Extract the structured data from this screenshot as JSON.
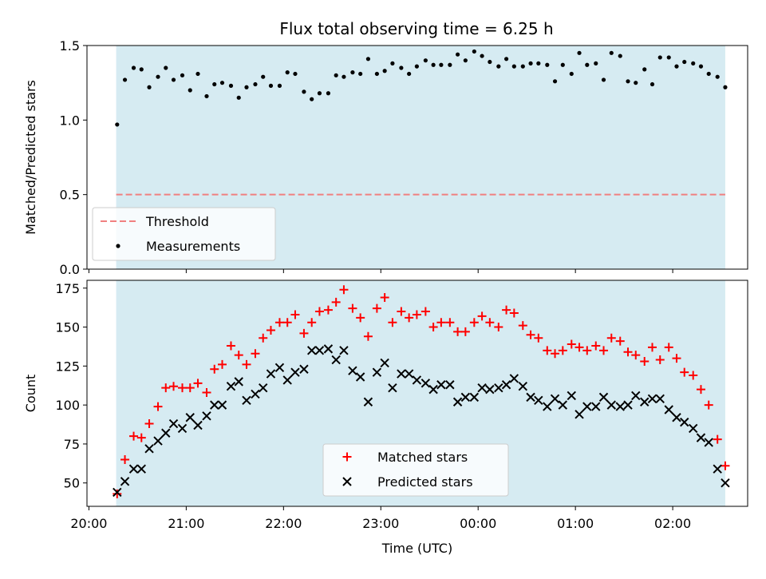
{
  "title": "Flux total observing time = 6.25 h",
  "colors": {
    "band": "#add8e6",
    "threshold": "#f08080",
    "measurement": "#000000",
    "matched": "#ff0000",
    "predicted": "#000000"
  },
  "chart_data": [
    {
      "type": "scatter",
      "panel": "top",
      "ylabel": "Matched/Predicted stars",
      "xlabel": "",
      "ylim": [
        0,
        1.5
      ],
      "yticks": [
        0.0,
        0.5,
        1.0,
        1.5
      ],
      "ytick_labels": [
        "0.0",
        "0.5",
        "1.0",
        "1.5"
      ],
      "xlim_hours": [
        19.98,
        26.77
      ],
      "xticks_hours": [
        20,
        21,
        22,
        23,
        24,
        25,
        26
      ],
      "shaded_span_hours": [
        20.28,
        26.54
      ],
      "threshold": 0.5,
      "legend_placement": "lower-left",
      "legend": [
        "Threshold",
        "Measurements"
      ],
      "series": [
        {
          "name": "Measurements",
          "marker": "dot",
          "x_hours": [
            20.29,
            20.37,
            20.46,
            20.54,
            20.62,
            20.71,
            20.79,
            20.87,
            20.96,
            21.04,
            21.12,
            21.21,
            21.29,
            21.37,
            21.46,
            21.54,
            21.62,
            21.71,
            21.79,
            21.87,
            21.96,
            22.04,
            22.12,
            22.21,
            22.29,
            22.37,
            22.46,
            22.54,
            22.62,
            22.71,
            22.79,
            22.87,
            22.96,
            23.04,
            23.12,
            23.21,
            23.29,
            23.37,
            23.46,
            23.54,
            23.62,
            23.71,
            23.79,
            23.87,
            23.96,
            24.04,
            24.12,
            24.21,
            24.29,
            24.37,
            24.46,
            24.54,
            24.62,
            24.71,
            24.79,
            24.87,
            24.96,
            25.04,
            25.12,
            25.21,
            25.29,
            25.37,
            25.46,
            25.54,
            25.62,
            25.71,
            25.79,
            25.87,
            25.96,
            26.04,
            26.12,
            26.21,
            26.29,
            26.37,
            26.46,
            26.54
          ],
          "values": [
            0.97,
            1.27,
            1.35,
            1.34,
            1.22,
            1.29,
            1.35,
            1.27,
            1.3,
            1.2,
            1.31,
            1.16,
            1.24,
            1.25,
            1.23,
            1.15,
            1.22,
            1.24,
            1.29,
            1.23,
            1.23,
            1.32,
            1.31,
            1.19,
            1.14,
            1.18,
            1.18,
            1.3,
            1.29,
            1.32,
            1.31,
            1.41,
            1.31,
            1.33,
            1.38,
            1.35,
            1.31,
            1.36,
            1.4,
            1.37,
            1.37,
            1.37,
            1.44,
            1.4,
            1.46,
            1.43,
            1.39,
            1.36,
            1.41,
            1.36,
            1.36,
            1.38,
            1.38,
            1.37,
            1.26,
            1.37,
            1.31,
            1.45,
            1.37,
            1.38,
            1.27,
            1.45,
            1.43,
            1.26,
            1.25,
            1.34,
            1.24,
            1.42,
            1.42,
            1.36,
            1.39,
            1.38,
            1.36,
            1.31,
            1.29,
            1.22
          ]
        },
        {
          "name": "Threshold",
          "style": "dashed",
          "values": [
            0.5
          ]
        }
      ]
    },
    {
      "type": "scatter",
      "panel": "bottom",
      "ylabel": "Count",
      "xlabel": "Time (UTC)",
      "ylim": [
        35,
        180
      ],
      "yticks": [
        50,
        75,
        100,
        125,
        150,
        175
      ],
      "ytick_labels": [
        "50",
        "75",
        "100",
        "125",
        "150",
        "175"
      ],
      "xlim_hours": [
        19.98,
        26.77
      ],
      "xticks_hours": [
        20,
        21,
        22,
        23,
        24,
        25,
        26
      ],
      "xtick_labels": [
        "20:00",
        "21:00",
        "22:00",
        "23:00",
        "00:00",
        "01:00",
        "02:00"
      ],
      "shaded_span_hours": [
        20.28,
        26.54
      ],
      "legend_placement": "lower-center",
      "legend": [
        "Matched stars",
        "Predicted stars"
      ],
      "series": [
        {
          "name": "Matched stars",
          "marker": "plus",
          "x_hours": [
            20.29,
            20.37,
            20.46,
            20.54,
            20.62,
            20.71,
            20.79,
            20.87,
            20.96,
            21.04,
            21.12,
            21.21,
            21.29,
            21.37,
            21.46,
            21.54,
            21.62,
            21.71,
            21.79,
            21.87,
            21.96,
            22.04,
            22.12,
            22.21,
            22.29,
            22.37,
            22.46,
            22.54,
            22.62,
            22.71,
            22.79,
            22.87,
            22.96,
            23.04,
            23.12,
            23.21,
            23.29,
            23.37,
            23.46,
            23.54,
            23.62,
            23.71,
            23.79,
            23.87,
            23.96,
            24.04,
            24.12,
            24.21,
            24.29,
            24.37,
            24.46,
            24.54,
            24.62,
            24.71,
            24.79,
            24.87,
            24.96,
            25.04,
            25.12,
            25.21,
            25.29,
            25.37,
            25.46,
            25.54,
            25.62,
            25.71,
            25.79,
            25.87,
            25.96,
            26.04,
            26.12,
            26.21,
            26.29,
            26.37,
            26.46,
            26.54
          ],
          "values": [
            43,
            65,
            80,
            79,
            88,
            99,
            111,
            112,
            111,
            111,
            114,
            108,
            123,
            126,
            138,
            132,
            126,
            133,
            143,
            148,
            153,
            153,
            158,
            146,
            153,
            160,
            161,
            166,
            174,
            162,
            156,
            144,
            162,
            169,
            153,
            160,
            156,
            158,
            160,
            150,
            153,
            153,
            147,
            147,
            153,
            157,
            153,
            150,
            161,
            159,
            151,
            145,
            143,
            135,
            133,
            135,
            139,
            137,
            135,
            138,
            135,
            143,
            141,
            134,
            132,
            128,
            137,
            129,
            137,
            130,
            121,
            119,
            110,
            100,
            78,
            61
          ]
        },
        {
          "name": "Predicted stars",
          "marker": "x",
          "x_hours": [
            20.29,
            20.37,
            20.46,
            20.54,
            20.62,
            20.71,
            20.79,
            20.87,
            20.96,
            21.04,
            21.12,
            21.21,
            21.29,
            21.37,
            21.46,
            21.54,
            21.62,
            21.71,
            21.79,
            21.87,
            21.96,
            22.04,
            22.12,
            22.21,
            22.29,
            22.37,
            22.46,
            22.54,
            22.62,
            22.71,
            22.79,
            22.87,
            22.96,
            23.04,
            23.12,
            23.21,
            23.29,
            23.37,
            23.46,
            23.54,
            23.62,
            23.71,
            23.79,
            23.87,
            23.96,
            24.04,
            24.12,
            24.21,
            24.29,
            24.37,
            24.46,
            24.54,
            24.62,
            24.71,
            24.79,
            24.87,
            24.96,
            25.04,
            25.12,
            25.21,
            25.29,
            25.37,
            25.46,
            25.54,
            25.62,
            25.71,
            25.79,
            25.87,
            25.96,
            26.04,
            26.12,
            26.21,
            26.29,
            26.37,
            26.46,
            26.54
          ],
          "values": [
            44,
            51,
            59,
            59,
            72,
            77,
            82,
            88,
            85,
            92,
            87,
            93,
            100,
            100,
            112,
            115,
            103,
            107,
            111,
            120,
            124,
            116,
            121,
            123,
            135,
            135,
            136,
            129,
            135,
            122,
            118,
            102,
            121,
            127,
            111,
            120,
            120,
            116,
            114,
            110,
            113,
            113,
            102,
            105,
            105,
            111,
            110,
            111,
            113,
            117,
            112,
            105,
            103,
            99,
            104,
            100,
            106,
            94,
            99,
            99,
            105,
            100,
            99,
            100,
            106,
            102,
            104,
            104,
            97,
            92,
            89,
            85,
            79,
            76,
            59,
            50
          ]
        }
      ]
    }
  ]
}
